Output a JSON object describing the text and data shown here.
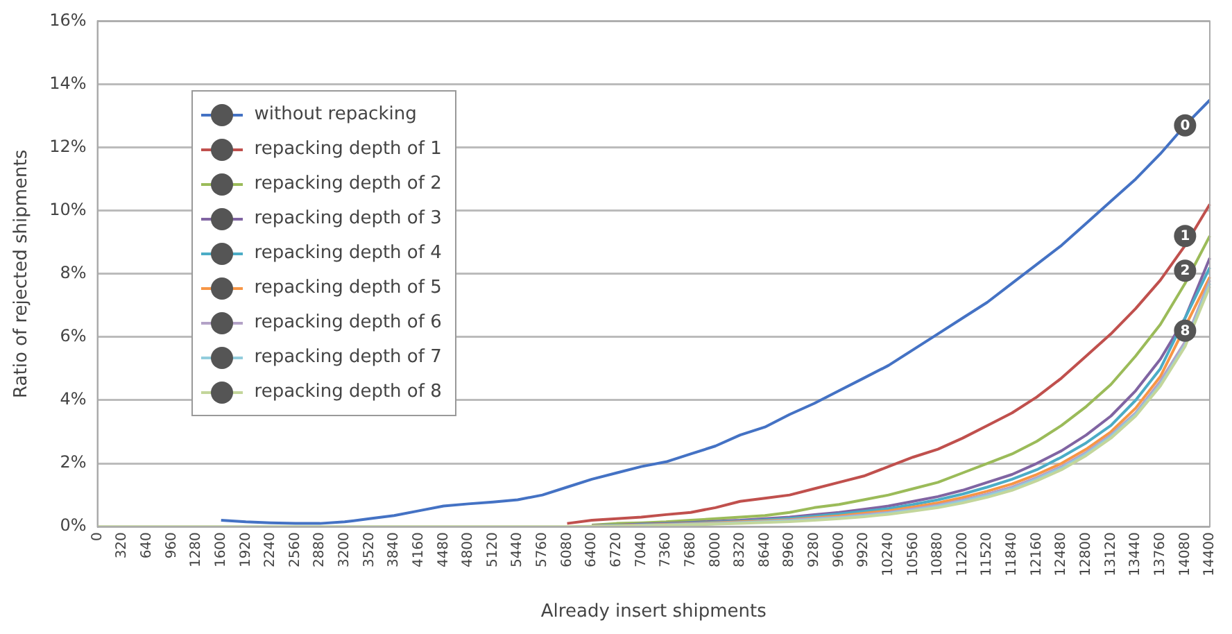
{
  "chart_data": {
    "type": "line",
    "xlabel": "Already insert shipments",
    "ylabel": "Ratio of rejected shipments",
    "categories": [
      "0",
      "320",
      "640",
      "960",
      "1280",
      "1600",
      "1920",
      "2240",
      "2560",
      "2880",
      "3200",
      "3520",
      "3840",
      "4160",
      "4480",
      "4800",
      "5120",
      "5440",
      "5760",
      "6080",
      "6400",
      "6720",
      "7040",
      "7360",
      "7680",
      "8000",
      "8320",
      "8640",
      "8960",
      "9280",
      "9600",
      "9920",
      "10240",
      "10560",
      "10880",
      "11200",
      "11520",
      "11840",
      "12160",
      "12480",
      "12800",
      "13120",
      "13440",
      "13760",
      "14080",
      "14400"
    ],
    "series": [
      {
        "name": "without repacking",
        "color": "#4472c4",
        "values": [
          null,
          null,
          null,
          null,
          null,
          0.2,
          0.15,
          0.12,
          0.1,
          0.1,
          0.15,
          0.25,
          0.35,
          0.5,
          0.65,
          0.72,
          0.78,
          0.85,
          1.0,
          1.25,
          1.5,
          1.7,
          1.9,
          2.05,
          2.3,
          2.55,
          2.9,
          3.15,
          3.55,
          3.9,
          4.3,
          4.7,
          5.1,
          5.6,
          6.1,
          6.6,
          7.1,
          7.7,
          8.3,
          8.9,
          9.6,
          10.3,
          11.0,
          11.8,
          12.7,
          13.5
        ]
      },
      {
        "name": "repacking depth of 1",
        "color": "#c0504d",
        "values": [
          null,
          null,
          null,
          null,
          null,
          null,
          null,
          null,
          null,
          null,
          null,
          null,
          null,
          null,
          null,
          null,
          null,
          null,
          null,
          0.1,
          0.2,
          0.25,
          0.3,
          0.38,
          0.45,
          0.6,
          0.8,
          0.9,
          1.0,
          1.2,
          1.4,
          1.6,
          1.9,
          2.2,
          2.45,
          2.8,
          3.2,
          3.6,
          4.1,
          4.7,
          5.4,
          6.1,
          6.9,
          7.8,
          8.9,
          10.2
        ]
      },
      {
        "name": "repacking depth of 2",
        "color": "#9bbb59",
        "values": [
          null,
          null,
          null,
          null,
          null,
          null,
          null,
          null,
          null,
          null,
          null,
          null,
          null,
          null,
          null,
          null,
          null,
          null,
          null,
          null,
          0.05,
          0.1,
          0.12,
          0.15,
          0.2,
          0.25,
          0.3,
          0.35,
          0.45,
          0.6,
          0.7,
          0.85,
          1.0,
          1.2,
          1.4,
          1.7,
          2.0,
          2.3,
          2.7,
          3.2,
          3.8,
          4.5,
          5.4,
          6.4,
          7.7,
          9.2
        ]
      },
      {
        "name": "repacking depth of 3",
        "color": "#8064a2",
        "values": [
          null,
          null,
          null,
          null,
          null,
          null,
          null,
          null,
          null,
          null,
          null,
          null,
          null,
          null,
          null,
          null,
          null,
          null,
          null,
          null,
          0.03,
          0.05,
          0.08,
          0.1,
          0.13,
          0.17,
          0.2,
          0.25,
          0.3,
          0.38,
          0.45,
          0.55,
          0.65,
          0.8,
          0.95,
          1.15,
          1.4,
          1.65,
          2.0,
          2.4,
          2.9,
          3.5,
          4.3,
          5.3,
          6.6,
          8.5
        ]
      },
      {
        "name": "repacking depth of 4",
        "color": "#4bacc6",
        "values": [
          null,
          null,
          null,
          null,
          null,
          null,
          null,
          null,
          null,
          null,
          null,
          null,
          null,
          null,
          null,
          null,
          null,
          null,
          null,
          null,
          0.02,
          0.04,
          0.06,
          0.08,
          0.11,
          0.14,
          0.17,
          0.21,
          0.26,
          0.33,
          0.4,
          0.48,
          0.57,
          0.7,
          0.85,
          1.03,
          1.25,
          1.5,
          1.8,
          2.2,
          2.65,
          3.2,
          4.0,
          5.0,
          null,
          8.2
        ]
      },
      {
        "name": "repacking depth of 5",
        "color": "#f79646",
        "values": [
          null,
          null,
          null,
          null,
          null,
          null,
          null,
          null,
          null,
          null,
          null,
          null,
          null,
          null,
          null,
          null,
          null,
          null,
          null,
          null,
          0.02,
          0.03,
          0.05,
          0.07,
          0.09,
          0.12,
          0.15,
          0.18,
          0.22,
          0.28,
          0.34,
          0.42,
          0.5,
          0.62,
          0.75,
          0.92,
          1.12,
          1.35,
          1.65,
          2.0,
          2.45,
          3.0,
          3.75,
          4.75,
          null,
          7.9
        ]
      },
      {
        "name": "repacking depth of 6",
        "color": "#b3a2c7",
        "values": [
          null,
          null,
          null,
          null,
          null,
          null,
          null,
          null,
          null,
          null,
          null,
          null,
          null,
          null,
          null,
          null,
          null,
          null,
          null,
          null,
          0.01,
          0.02,
          0.04,
          0.06,
          0.08,
          0.1,
          0.13,
          0.16,
          0.2,
          0.25,
          0.3,
          0.37,
          0.45,
          0.56,
          0.68,
          0.84,
          1.03,
          1.25,
          1.55,
          1.9,
          2.35,
          2.9,
          3.6,
          4.6,
          5.85,
          7.8
        ]
      },
      {
        "name": "repacking depth of 7",
        "color": "#93cddd",
        "values": [
          null,
          null,
          null,
          null,
          null,
          null,
          null,
          null,
          null,
          null,
          null,
          null,
          null,
          null,
          null,
          null,
          null,
          null,
          null,
          null,
          0.01,
          0.02,
          0.03,
          0.05,
          0.07,
          0.09,
          0.12,
          0.15,
          0.18,
          0.23,
          0.28,
          0.34,
          0.42,
          0.52,
          0.64,
          0.8,
          0.98,
          1.2,
          1.5,
          1.85,
          2.3,
          2.85,
          3.55,
          4.5,
          5.75,
          7.7
        ]
      },
      {
        "name": "repacking depth of 8",
        "color": "#c3d69b",
        "values": [
          0,
          0,
          0,
          0,
          0,
          0,
          0,
          0,
          0,
          0,
          0,
          0,
          0,
          0,
          0,
          0,
          0,
          0,
          0,
          0,
          0.01,
          0.02,
          0.03,
          0.04,
          0.06,
          0.08,
          0.1,
          0.13,
          0.16,
          0.2,
          0.25,
          0.31,
          0.39,
          0.49,
          0.6,
          0.75,
          0.93,
          1.15,
          1.45,
          1.8,
          2.25,
          2.8,
          3.5,
          4.45,
          5.7,
          7.6
        ]
      }
    ],
    "ylim": [
      0,
      16
    ],
    "yticks": [
      {
        "value": 0,
        "label": "0%"
      },
      {
        "value": 2,
        "label": "2%"
      },
      {
        "value": 4,
        "label": "4%"
      },
      {
        "value": 6,
        "label": "6%"
      },
      {
        "value": 8,
        "label": "8%"
      },
      {
        "value": 10,
        "label": "10%"
      },
      {
        "value": 12,
        "label": "12%"
      },
      {
        "value": 14,
        "label": "14%"
      },
      {
        "value": 16,
        "label": "16%"
      }
    ],
    "grid": "y",
    "legend": "top left",
    "marker": "none",
    "line_style": "solid",
    "annotations": [
      {
        "text": "0",
        "x": "14080",
        "y": 12.7
      },
      {
        "text": "1",
        "x": "14080",
        "y": 9.2
      },
      {
        "text": "2",
        "x": "14080",
        "y": 8.1
      },
      {
        "text": "8",
        "x": "14080",
        "y": 6.2
      }
    ]
  }
}
